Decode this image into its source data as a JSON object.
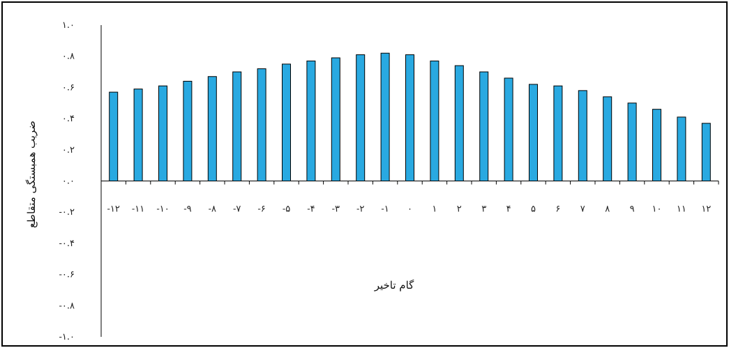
{
  "chart_data": {
    "type": "bar",
    "xlabel": "گام تاخیر",
    "ylabel": "ضریب همبستگی متقاطع",
    "ylim": [
      -1.0,
      1.0
    ],
    "grid": false,
    "legend": "none",
    "bar_color": "#29a9e1",
    "y_ticks": [
      1.0,
      0.8,
      0.6,
      0.4,
      0.2,
      0.0,
      -0.2,
      -0.4,
      -0.6,
      -0.8,
      -1.0
    ],
    "y_tick_labels": [
      "۱.۰",
      "۰.۸",
      "۰.۶",
      "۰.۴",
      "۰.۲",
      "۰.۰",
      "-۰.۲",
      "-۰.۴",
      "-۰.۶",
      "-۰.۸",
      "-۱.۰"
    ],
    "categories": [
      "-۱۲",
      "-۱۱",
      "-۱۰",
      "-۹",
      "-۸",
      "-۷",
      "-۶",
      "-۵",
      "-۴",
      "-۳",
      "-۲",
      "-۱",
      "۰",
      "۱",
      "۲",
      "۳",
      "۴",
      "۵",
      "۶",
      "۷",
      "۸",
      "۹",
      "۱۰",
      "۱۱",
      "۱۲"
    ],
    "values": [
      0.57,
      0.59,
      0.61,
      0.64,
      0.67,
      0.7,
      0.72,
      0.75,
      0.77,
      0.79,
      0.81,
      0.82,
      0.81,
      0.77,
      0.74,
      0.7,
      0.66,
      0.62,
      0.61,
      0.58,
      0.54,
      0.5,
      0.46,
      0.41,
      0.37
    ]
  }
}
